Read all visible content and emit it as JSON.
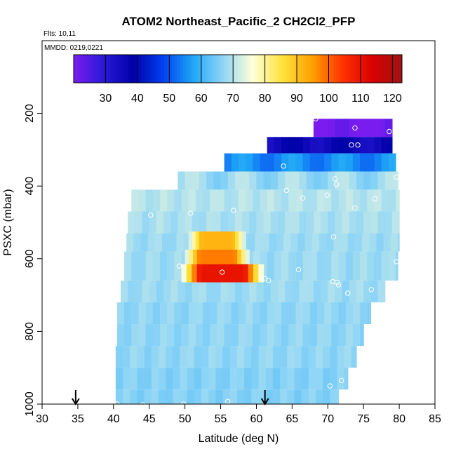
{
  "chart_data": {
    "type": "heatmap",
    "title": "ATOM2 Northeast_Pacific_2 CH2Cl2_PFP",
    "flights": "Flts: 10,11",
    "mmdd": "MMDD: 0219,0221",
    "xlabel": "Latitude (deg N)",
    "ylabel": "PSXC (mbar)",
    "xlim": [
      30,
      85
    ],
    "ylim": [
      1000,
      0
    ],
    "xticks": [
      30,
      35,
      40,
      45,
      50,
      55,
      60,
      65,
      70,
      75,
      80,
      85
    ],
    "yticks": [
      200,
      400,
      600,
      800,
      1000
    ],
    "colorbar": {
      "range": [
        20,
        123
      ],
      "ticks": [
        30,
        40,
        50,
        60,
        70,
        80,
        90,
        100,
        110,
        120
      ],
      "stops": [
        "#7a1cf0",
        "#2a1ad8",
        "#0000a8",
        "#0040f0",
        "#1fa6f7",
        "#8fd5f6",
        "#ffffd8",
        "#ffe23b",
        "#ff9f00",
        "#ff3300",
        "#d90000",
        "#a01414"
      ]
    },
    "arrows_lat": [
      34.7,
      61.2
    ],
    "field_rows": [
      {
        "pmin": 215,
        "pmax": 265,
        "lat": [
          68,
          79
        ],
        "val": 20
      },
      {
        "pmin": 265,
        "pmax": 310,
        "lat": [
          61.5,
          79
        ],
        "val": 36
      },
      {
        "pmin": 310,
        "pmax": 360,
        "lat": [
          55.5,
          79.5
        ],
        "val": 55
      },
      {
        "pmin": 360,
        "pmax": 410,
        "lat": [
          49,
          79.8
        ],
        "val": 68
      },
      {
        "pmin": 410,
        "pmax": 470,
        "lat": [
          42.5,
          80
        ],
        "val": 70
      },
      {
        "pmin": 470,
        "pmax": 530,
        "lat": [
          42,
          80
        ],
        "val": 69
      },
      {
        "pmin": 530,
        "pmax": 580,
        "lat": [
          41.8,
          80
        ],
        "val": 68
      },
      {
        "pmin": 580,
        "pmax": 660,
        "lat": [
          41.5,
          79.8
        ],
        "val": 68
      },
      {
        "pmin": 660,
        "pmax": 720,
        "lat": [
          41,
          78
        ],
        "val": 68
      },
      {
        "pmin": 720,
        "pmax": 780,
        "lat": [
          40.5,
          76
        ],
        "val": 67
      },
      {
        "pmin": 780,
        "pmax": 840,
        "lat": [
          40.5,
          75
        ],
        "val": 67
      },
      {
        "pmin": 840,
        "pmax": 900,
        "lat": [
          40.3,
          74
        ],
        "val": 67
      },
      {
        "pmin": 900,
        "pmax": 960,
        "lat": [
          40.3,
          72.8
        ],
        "val": 66
      },
      {
        "pmin": 960,
        "pmax": 1000,
        "lat": [
          40.3,
          71.5
        ],
        "val": 66
      }
    ],
    "hotspots": [
      {
        "pmin": 525,
        "pmax": 575,
        "lat": [
          50.5,
          58.5
        ],
        "val": 92
      },
      {
        "pmin": 575,
        "pmax": 615,
        "lat": [
          50,
          59
        ],
        "val": 98
      },
      {
        "pmin": 615,
        "pmax": 665,
        "lat": [
          49.5,
          61
        ],
        "val": 110
      }
    ],
    "points": [
      [
        68.3,
        215
      ],
      [
        73.8,
        240
      ],
      [
        78.6,
        250
      ],
      [
        73.3,
        287
      ],
      [
        74.2,
        287
      ],
      [
        63.8,
        345
      ],
      [
        79.6,
        375
      ],
      [
        71,
        380
      ],
      [
        71.2,
        395
      ],
      [
        64.2,
        412
      ],
      [
        69.9,
        425
      ],
      [
        66.5,
        433
      ],
      [
        76.6,
        435
      ],
      [
        73.8,
        460
      ],
      [
        56.8,
        467
      ],
      [
        50.8,
        475
      ],
      [
        45.2,
        480
      ],
      [
        70.8,
        540
      ],
      [
        49.2,
        620
      ],
      [
        55.2,
        637
      ],
      [
        65.9,
        630
      ],
      [
        61.2,
        655
      ],
      [
        61.7,
        660
      ],
      [
        70.7,
        663
      ],
      [
        71.3,
        665
      ],
      [
        71.5,
        672
      ],
      [
        72.8,
        695
      ],
      [
        76.1,
        685
      ],
      [
        79.6,
        608
      ],
      [
        71.9,
        935
      ],
      [
        70.3,
        950
      ],
      [
        40.5,
        1000
      ],
      [
        44.1,
        1002
      ],
      [
        49.8,
        1000
      ],
      [
        56,
        993
      ]
    ]
  }
}
